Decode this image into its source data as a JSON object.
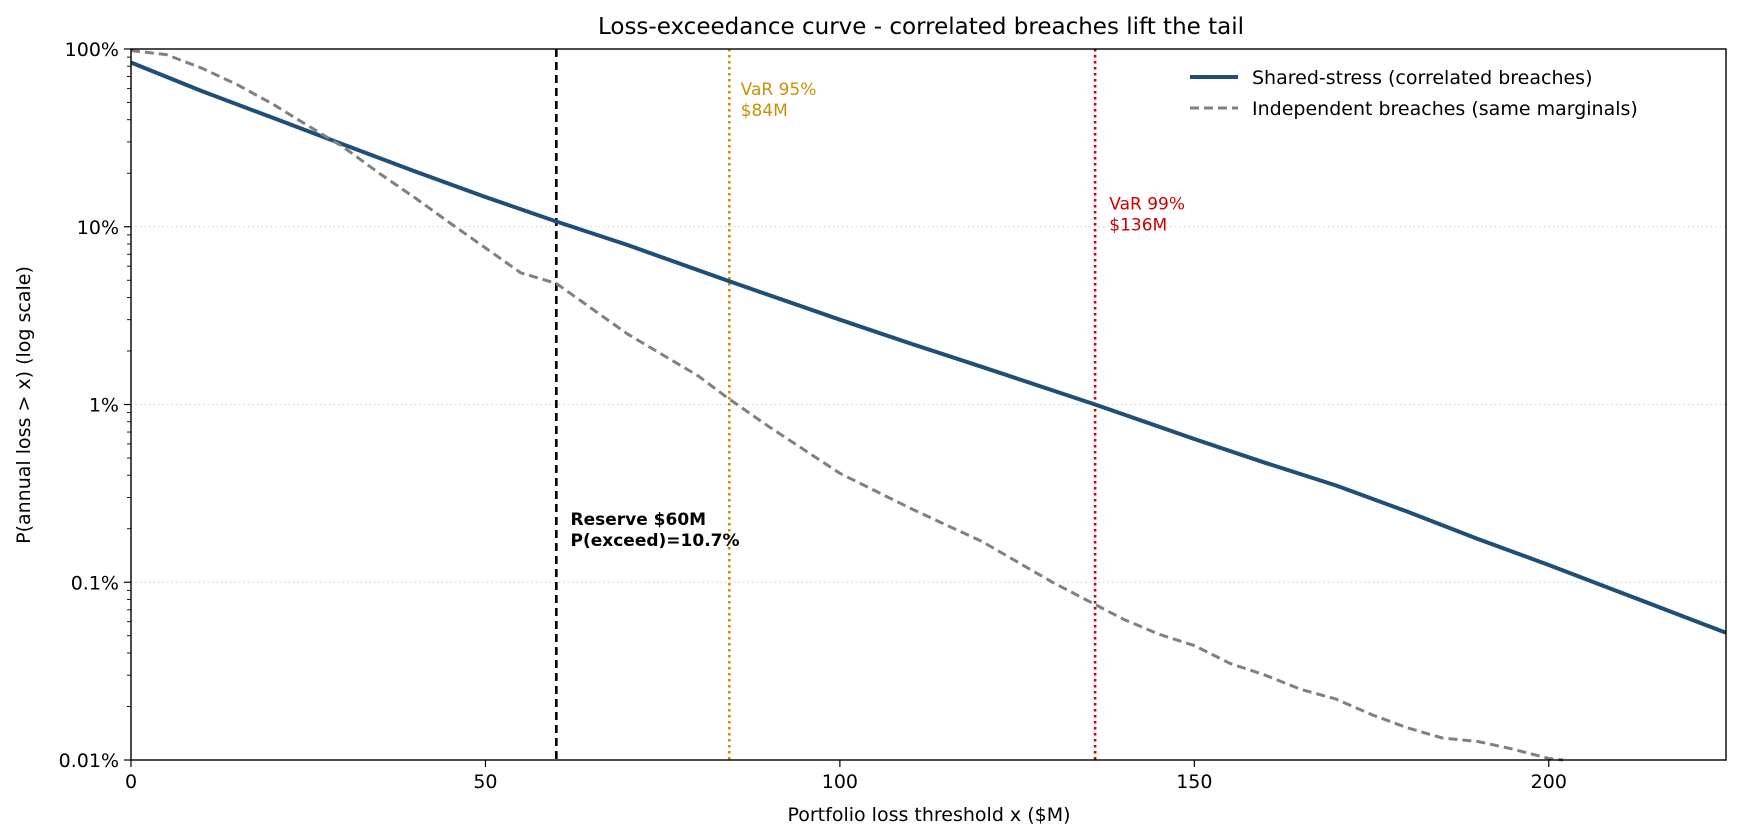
{
  "chart_data": {
    "type": "line",
    "title": "Loss-exceedance curve - correlated breaches lift the tail",
    "xlabel": "Portfolio loss threshold x  ($M)",
    "ylabel": "P(annual loss > x)   (log scale)",
    "xlim": [
      0,
      225
    ],
    "ylim": [
      0.0001,
      1
    ],
    "y_scale": "log",
    "x_ticks": [
      0,
      50,
      100,
      150,
      200
    ],
    "x_tick_labels": [
      "0",
      "50",
      "100",
      "150",
      "200"
    ],
    "y_ticks": [
      0.0001,
      0.001,
      0.01,
      0.1,
      1
    ],
    "y_tick_labels": [
      "0.01%",
      "0.1%",
      "1%",
      "10%",
      "100%"
    ],
    "grid": "horizontal dotted at major y ticks",
    "legend_position": "top-right",
    "series": [
      {
        "name": "Shared-stress (correlated breaches)",
        "color": "#1f4e79",
        "style": "solid",
        "x": [
          0,
          10,
          20,
          30,
          40,
          50,
          60,
          70,
          84,
          100,
          110,
          120,
          136,
          150,
          160,
          170,
          180,
          190,
          200,
          210,
          220,
          225
        ],
        "y": [
          0.84,
          0.58,
          0.41,
          0.29,
          0.205,
          0.147,
          0.107,
          0.079,
          0.05,
          0.03,
          0.022,
          0.0163,
          0.01,
          0.0064,
          0.0047,
          0.0035,
          0.0025,
          0.00175,
          0.00125,
          0.00088,
          0.00062,
          0.00052
        ]
      },
      {
        "name": "Independent breaches (same marginals)",
        "color": "#808080",
        "style": "dashed",
        "x": [
          0,
          5,
          10,
          15,
          20,
          25,
          30,
          35,
          40,
          45,
          50,
          55,
          60,
          70,
          80,
          84,
          90,
          100,
          110,
          115,
          120,
          130,
          136,
          140,
          145,
          150,
          155,
          160,
          165,
          170,
          175,
          180,
          185,
          190,
          195,
          200,
          202
        ],
        "y": [
          0.98,
          0.93,
          0.78,
          0.63,
          0.49,
          0.37,
          0.28,
          0.2,
          0.146,
          0.105,
          0.076,
          0.055,
          0.048,
          0.025,
          0.0145,
          0.011,
          0.0075,
          0.0041,
          0.0026,
          0.0021,
          0.0017,
          0.001,
          0.00075,
          0.00062,
          0.00051,
          0.00044,
          0.00035,
          0.0003,
          0.00025,
          0.00022,
          0.00018,
          0.000152,
          0.000133,
          0.000127,
          0.000115,
          0.000102,
          0.0001
        ]
      }
    ],
    "vlines": [
      {
        "x": 60,
        "color": "#000000",
        "style": "dashed"
      },
      {
        "x": 84.4,
        "color": "#c8900a",
        "style": "dotted"
      },
      {
        "x": 136,
        "color": "#cc0000",
        "style": "dotted"
      }
    ],
    "annotations": [
      {
        "lines": [
          "VaR 95%",
          "$84M"
        ],
        "x": 86,
        "y": 0.55,
        "color": "#c8900a",
        "bold": false
      },
      {
        "lines": [
          "VaR 99%",
          "$136M"
        ],
        "x": 138,
        "y": 0.125,
        "color": "#cc0000",
        "bold": false
      },
      {
        "lines": [
          "Reserve $60M",
          "P(exceed)=10.7%"
        ],
        "x": 62,
        "y": 0.0021,
        "color": "#000000",
        "bold": true
      }
    ]
  }
}
